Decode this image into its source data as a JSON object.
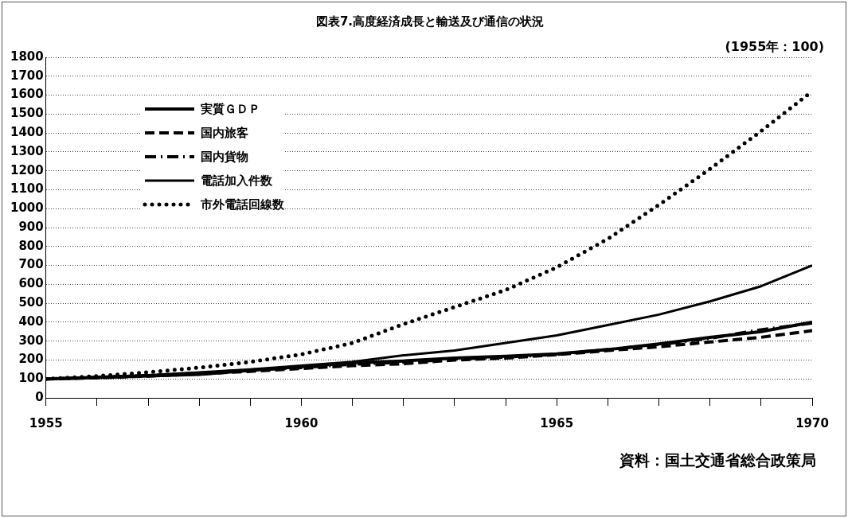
{
  "chart_data": {
    "type": "line",
    "title": "図表7.高度経済成長と輸送及び通信の状況",
    "x": [
      1955,
      1956,
      1957,
      1958,
      1959,
      1960,
      1961,
      1962,
      1963,
      1964,
      1965,
      1966,
      1967,
      1968,
      1969,
      1970
    ],
    "xlim": [
      1955,
      1970
    ],
    "xticks": [
      1955,
      {
        "value": 1956,
        "label": null
      },
      {
        "value": 1957,
        "label": null
      },
      {
        "value": 1958,
        "label": null
      },
      {
        "value": 1959,
        "label": null
      },
      1960,
      {
        "value": 1961,
        "label": null
      },
      {
        "value": 1962,
        "label": null
      },
      {
        "value": 1963,
        "label": null
      },
      {
        "value": 1964,
        "label": null
      },
      1965,
      {
        "value": 1966,
        "label": null
      },
      {
        "value": 1967,
        "label": null
      },
      {
        "value": 1968,
        "label": null
      },
      {
        "value": 1969,
        "label": null
      },
      1970
    ],
    "ylim": [
      0,
      1800
    ],
    "yticks": [
      0,
      100,
      200,
      300,
      400,
      500,
      600,
      700,
      800,
      900,
      1000,
      1100,
      1200,
      1300,
      1400,
      1500,
      1600,
      1700,
      1800
    ],
    "grid": "y",
    "legend": "top left",
    "marker": "none",
    "series": [
      {
        "name": "実質ＧＤＰ",
        "color": "#000000",
        "line_style": "solid",
        "values": [
          100,
          107,
          116,
          124,
          145,
          165,
          185,
          195,
          210,
          220,
          232,
          255,
          285,
          320,
          350,
          400
        ]
      },
      {
        "name": "国内旅客",
        "color": "#000000",
        "line_style": "dashed",
        "values": [
          100,
          106,
          115,
          127,
          140,
          155,
          170,
          180,
          200,
          210,
          228,
          250,
          270,
          295,
          320,
          355
        ]
      },
      {
        "name": "国内貨物",
        "color": "#000000",
        "line_style": "dashdot",
        "values": [
          100,
          108,
          118,
          130,
          147,
          160,
          178,
          188,
          205,
          215,
          230,
          255,
          282,
          315,
          360,
          395
        ]
      },
      {
        "name": "電話加入件数",
        "color": "#000000",
        "line_style": "solid",
        "values": [
          100,
          110,
          120,
          135,
          150,
          170,
          190,
          225,
          250,
          290,
          330,
          385,
          440,
          510,
          590,
          700
        ]
      },
      {
        "name": "市外電話回線数",
        "color": "#000000",
        "line_style": "dotted",
        "values": [
          100,
          115,
          135,
          160,
          190,
          230,
          290,
          390,
          480,
          570,
          690,
          840,
          1020,
          1210,
          1410,
          1620
        ]
      }
    ],
    "annotations": [
      "(1955年：100)",
      "資料：国土交通省総合政策局"
    ]
  }
}
